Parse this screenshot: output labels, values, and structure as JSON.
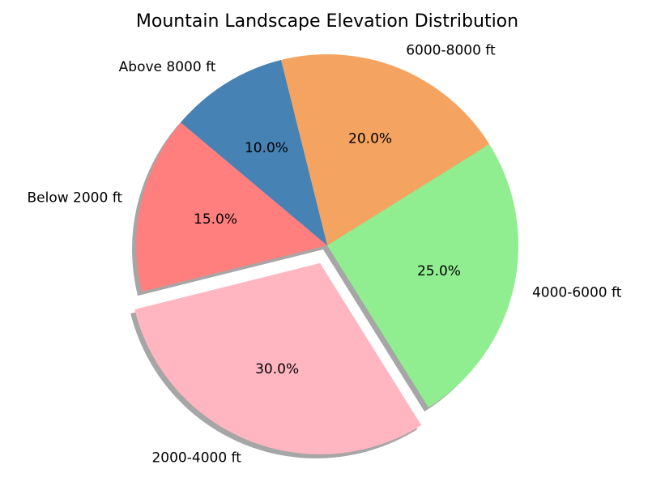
{
  "chart_data": {
    "type": "pie",
    "title": "Mountain Landscape Elevation Distribution",
    "start_angle_deg": 140,
    "direction": "counterclockwise",
    "shadow": true,
    "categories": [
      "Below 2000 ft",
      "2000-4000 ft",
      "4000-6000 ft",
      "6000-8000 ft",
      "Above 8000 ft"
    ],
    "values": [
      15,
      30,
      25,
      20,
      10
    ],
    "percent_labels": [
      "15.0%",
      "30.0%",
      "25.0%",
      "20.0%",
      "10.0%"
    ],
    "colors": [
      "#FF7F7F",
      "#FFB6C1",
      "#90EE90",
      "#F4A460",
      "#4682B4"
    ],
    "exploded": [
      false,
      true,
      false,
      false,
      false
    ]
  }
}
